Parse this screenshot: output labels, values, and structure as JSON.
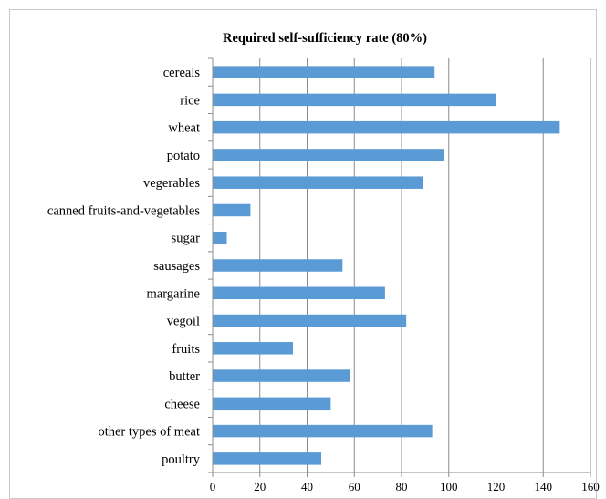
{
  "chart_data": {
    "type": "bar",
    "orientation": "horizontal",
    "title": "Required self-sufficiency rate (80%)",
    "xlabel": "",
    "ylabel": "",
    "categories": [
      "cereals",
      "rice",
      "wheat",
      "potato",
      "vegerables",
      "canned fruits-and-vegetables",
      "sugar",
      "sausages",
      "margarine",
      "vegoil",
      "fruits",
      "butter",
      "cheese",
      "other types of meat",
      "poultry"
    ],
    "values": [
      94,
      120,
      147,
      98,
      89,
      16,
      6,
      55,
      73,
      82,
      34,
      58,
      50,
      93,
      46
    ],
    "xlim": [
      0,
      160
    ],
    "xticks": [
      0,
      20,
      40,
      60,
      80,
      100,
      120,
      140,
      160
    ],
    "grid": "vertical",
    "legend": "none",
    "bar_color": "#5b9bd5",
    "grid_color": "#8c8c8c"
  }
}
